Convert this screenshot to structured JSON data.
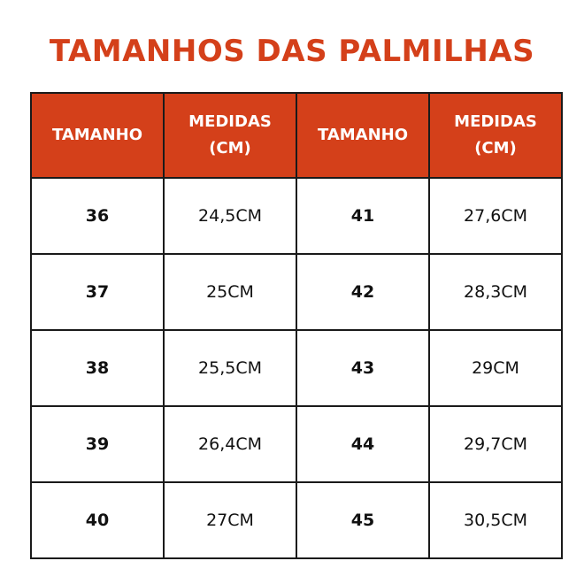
{
  "title": "TAMANHOS DAS PALMILHAS",
  "accent_color": "#d4401a",
  "headers": [
    "TAMANHO",
    "MEDIDAS (CM)",
    "TAMANHO",
    "MEDIDAS (CM)"
  ],
  "rows": [
    [
      "36",
      "24,5CM",
      "41",
      "27,6CM"
    ],
    [
      "37",
      "25CM",
      "42",
      "28,3CM"
    ],
    [
      "38",
      "25,5CM",
      "43",
      "29CM"
    ],
    [
      "39",
      "26,4CM",
      "44",
      "29,7CM"
    ],
    [
      "40",
      "27CM",
      "45",
      "30,5CM"
    ]
  ]
}
